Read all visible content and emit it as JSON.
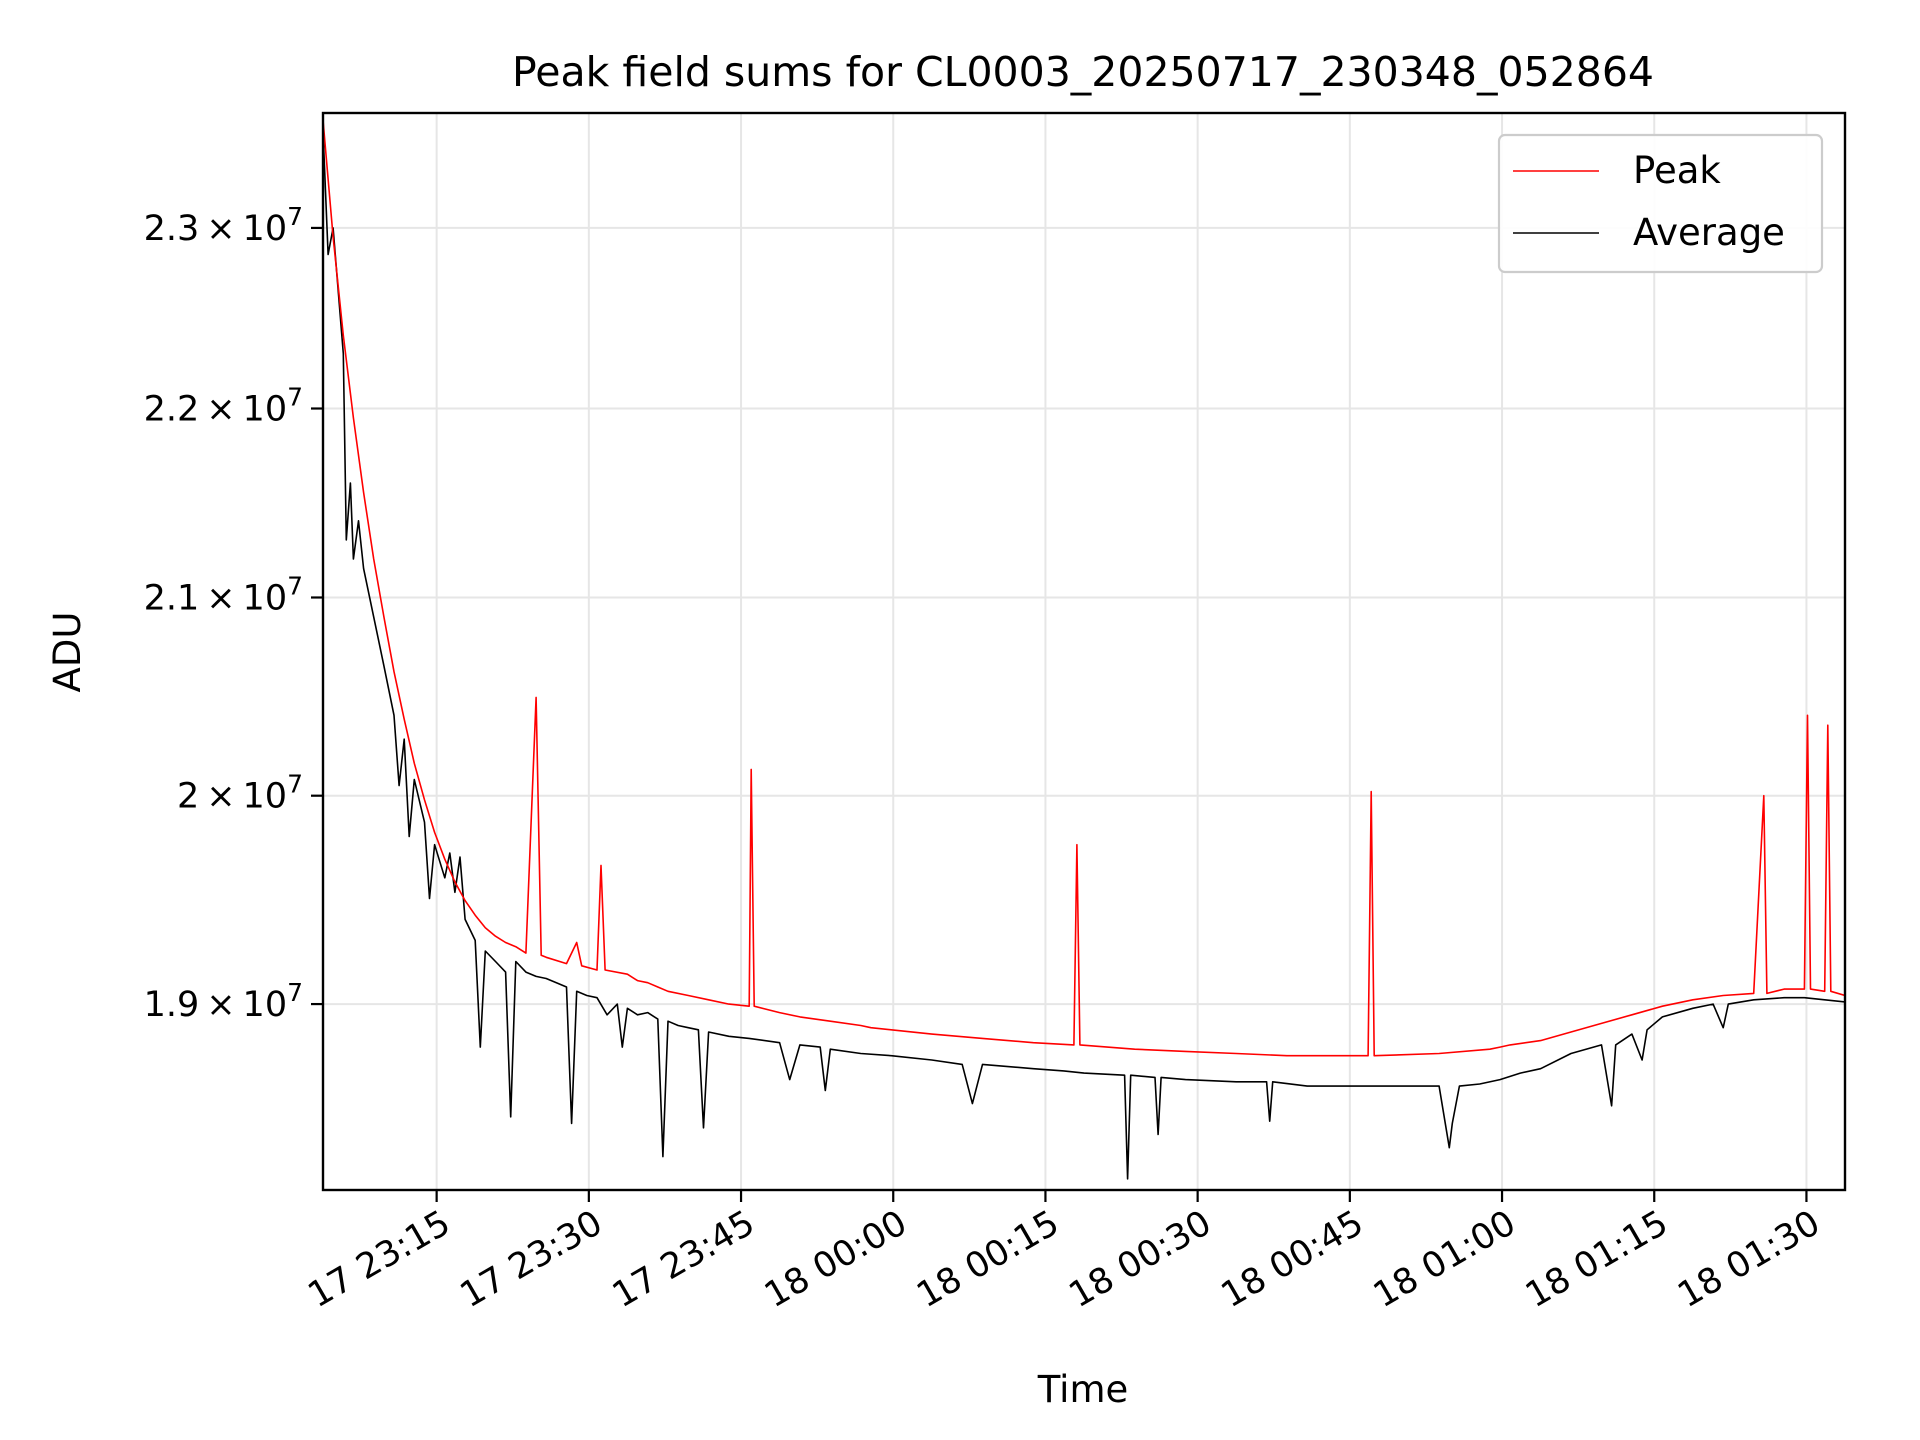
{
  "chart_data": {
    "type": "line",
    "title": "Peak field sums for CL0003_20250717_230348_052864",
    "xlabel": "Time",
    "ylabel": "ADU",
    "x_ticks": [
      "17 23:15",
      "17 23:30",
      "17 23:45",
      "18 00:00",
      "18 00:15",
      "18 00:30",
      "18 00:45",
      "18 01:00",
      "18 01:15",
      "18 01:30"
    ],
    "x_tick_minutes": [
      11.2,
      26.2,
      41.2,
      56.2,
      71.2,
      86.2,
      101.2,
      116.2,
      131.2,
      146.2
    ],
    "xlim_minutes": [
      0,
      150
    ],
    "y_ticks": [
      {
        "mantissa": "1.9",
        "base": "10",
        "exponent": "7",
        "value": 19000000
      },
      {
        "mantissa": "2",
        "base": "10",
        "exponent": "7",
        "value": 20000000
      },
      {
        "mantissa": "2.1",
        "base": "10",
        "exponent": "7",
        "value": 21000000
      },
      {
        "mantissa": "2.2",
        "base": "10",
        "exponent": "7",
        "value": 22000000
      },
      {
        "mantissa": "2.3",
        "base": "10",
        "exponent": "7",
        "value": 23000000
      }
    ],
    "y_scale": "log",
    "ylim": [
      18150000,
      23660000
    ],
    "grid": true,
    "legend_position": "top-right",
    "series": [
      {
        "name": "Peak",
        "color": "#ff0000",
        "points": [
          [
            0,
            23620000
          ],
          [
            1,
            22950000
          ],
          [
            2,
            22400000
          ],
          [
            3,
            21950000
          ],
          [
            4,
            21550000
          ],
          [
            5,
            21200000
          ],
          [
            6,
            20900000
          ],
          [
            7,
            20620000
          ],
          [
            8,
            20380000
          ],
          [
            9,
            20160000
          ],
          [
            10,
            19980000
          ],
          [
            11,
            19820000
          ],
          [
            12,
            19690000
          ],
          [
            13,
            19580000
          ],
          [
            14,
            19490000
          ],
          [
            15,
            19420000
          ],
          [
            16,
            19360000
          ],
          [
            17,
            19320000
          ],
          [
            18,
            19290000
          ],
          [
            19,
            19270000
          ],
          [
            20,
            19240000
          ],
          [
            21,
            20490000
          ],
          [
            21.5,
            19230000
          ],
          [
            22,
            19220000
          ],
          [
            24,
            19190000
          ],
          [
            25,
            19290000
          ],
          [
            25.5,
            19180000
          ],
          [
            27,
            19160000
          ],
          [
            27.4,
            19660000
          ],
          [
            27.8,
            19160000
          ],
          [
            30,
            19140000
          ],
          [
            31,
            19110000
          ],
          [
            32,
            19100000
          ],
          [
            33,
            19080000
          ],
          [
            34,
            19060000
          ],
          [
            36,
            19040000
          ],
          [
            38,
            19020000
          ],
          [
            40,
            19000000
          ],
          [
            42,
            18990000
          ],
          [
            42.2,
            20130000
          ],
          [
            42.5,
            18990000
          ],
          [
            45,
            18960000
          ],
          [
            47,
            18940000
          ],
          [
            50,
            18920000
          ],
          [
            53,
            18900000
          ],
          [
            54,
            18890000
          ],
          [
            56,
            18880000
          ],
          [
            60,
            18860000
          ],
          [
            65,
            18840000
          ],
          [
            70,
            18820000
          ],
          [
            74,
            18810000
          ],
          [
            74.3,
            19760000
          ],
          [
            74.6,
            18810000
          ],
          [
            80,
            18790000
          ],
          [
            85,
            18780000
          ],
          [
            90,
            18770000
          ],
          [
            95,
            18760000
          ],
          [
            100,
            18760000
          ],
          [
            103,
            18760000
          ],
          [
            103.3,
            20020000
          ],
          [
            103.6,
            18760000
          ],
          [
            110,
            18770000
          ],
          [
            115,
            18790000
          ],
          [
            116,
            18800000
          ],
          [
            117,
            18810000
          ],
          [
            120,
            18830000
          ],
          [
            123,
            18870000
          ],
          [
            126,
            18910000
          ],
          [
            129,
            18950000
          ],
          [
            132,
            18990000
          ],
          [
            135,
            19020000
          ],
          [
            138,
            19040000
          ],
          [
            141,
            19050000
          ],
          [
            142,
            20000000
          ],
          [
            142.3,
            19050000
          ],
          [
            144,
            19070000
          ],
          [
            146,
            19070000
          ],
          [
            146.3,
            20400000
          ],
          [
            146.6,
            19070000
          ],
          [
            148,
            19060000
          ],
          [
            148.3,
            20350000
          ],
          [
            148.6,
            19060000
          ],
          [
            150,
            19040000
          ]
        ]
      },
      {
        "name": "Average",
        "color": "#000000",
        "points": [
          [
            0,
            23560000
          ],
          [
            0.5,
            22850000
          ],
          [
            1,
            23000000
          ],
          [
            2,
            22300000
          ],
          [
            2.3,
            21300000
          ],
          [
            2.7,
            21600000
          ],
          [
            3,
            21200000
          ],
          [
            3.5,
            21400000
          ],
          [
            4,
            21150000
          ],
          [
            5,
            20900000
          ],
          [
            6,
            20650000
          ],
          [
            7,
            20400000
          ],
          [
            7.5,
            20050000
          ],
          [
            8,
            20280000
          ],
          [
            8.5,
            19800000
          ],
          [
            9,
            20080000
          ],
          [
            10,
            19870000
          ],
          [
            10.5,
            19500000
          ],
          [
            11,
            19760000
          ],
          [
            12,
            19600000
          ],
          [
            12.5,
            19720000
          ],
          [
            13,
            19530000
          ],
          [
            13.5,
            19700000
          ],
          [
            14,
            19400000
          ],
          [
            15,
            19300000
          ],
          [
            15.5,
            18800000
          ],
          [
            16,
            19250000
          ],
          [
            17,
            19200000
          ],
          [
            18,
            19150000
          ],
          [
            18.5,
            18480000
          ],
          [
            19,
            19200000
          ],
          [
            20,
            19150000
          ],
          [
            21,
            19130000
          ],
          [
            22,
            19120000
          ],
          [
            23,
            19100000
          ],
          [
            24,
            19080000
          ],
          [
            24.5,
            18450000
          ],
          [
            25,
            19060000
          ],
          [
            26,
            19040000
          ],
          [
            27,
            19030000
          ],
          [
            28,
            18950000
          ],
          [
            29,
            19000000
          ],
          [
            29.5,
            18800000
          ],
          [
            30,
            18980000
          ],
          [
            31,
            18950000
          ],
          [
            32,
            18960000
          ],
          [
            33,
            18930000
          ],
          [
            33.5,
            18300000
          ],
          [
            34,
            18920000
          ],
          [
            35,
            18900000
          ],
          [
            36,
            18890000
          ],
          [
            37,
            18880000
          ],
          [
            37.5,
            18430000
          ],
          [
            38,
            18870000
          ],
          [
            40,
            18850000
          ],
          [
            42,
            18840000
          ],
          [
            45,
            18820000
          ],
          [
            46,
            18650000
          ],
          [
            47,
            18810000
          ],
          [
            49,
            18800000
          ],
          [
            49.5,
            18600000
          ],
          [
            50,
            18790000
          ],
          [
            53,
            18770000
          ],
          [
            56,
            18760000
          ],
          [
            60,
            18740000
          ],
          [
            63,
            18720000
          ],
          [
            64,
            18540000
          ],
          [
            65,
            18720000
          ],
          [
            70,
            18700000
          ],
          [
            73,
            18690000
          ],
          [
            75,
            18680000
          ],
          [
            79,
            18670000
          ],
          [
            79.3,
            18200000
          ],
          [
            79.6,
            18670000
          ],
          [
            82,
            18660000
          ],
          [
            82.3,
            18400000
          ],
          [
            82.6,
            18660000
          ],
          [
            85,
            18650000
          ],
          [
            90,
            18640000
          ],
          [
            93,
            18640000
          ],
          [
            93.3,
            18460000
          ],
          [
            93.6,
            18640000
          ],
          [
            97,
            18620000
          ],
          [
            100,
            18620000
          ],
          [
            103,
            18620000
          ],
          [
            105,
            18620000
          ],
          [
            110,
            18620000
          ],
          [
            111,
            18340000
          ],
          [
            111.3,
            18450000
          ],
          [
            112,
            18620000
          ],
          [
            114,
            18630000
          ],
          [
            116,
            18650000
          ],
          [
            118,
            18680000
          ],
          [
            120,
            18700000
          ],
          [
            123,
            18770000
          ],
          [
            126,
            18810000
          ],
          [
            127,
            18530000
          ],
          [
            127.4,
            18810000
          ],
          [
            129,
            18860000
          ],
          [
            130,
            18740000
          ],
          [
            130.5,
            18880000
          ],
          [
            132,
            18940000
          ],
          [
            135,
            18980000
          ],
          [
            137,
            19000000
          ],
          [
            138,
            18890000
          ],
          [
            138.5,
            19000000
          ],
          [
            141,
            19020000
          ],
          [
            144,
            19030000
          ],
          [
            146,
            19030000
          ],
          [
            148,
            19020000
          ],
          [
            150,
            19010000
          ]
        ]
      }
    ]
  }
}
